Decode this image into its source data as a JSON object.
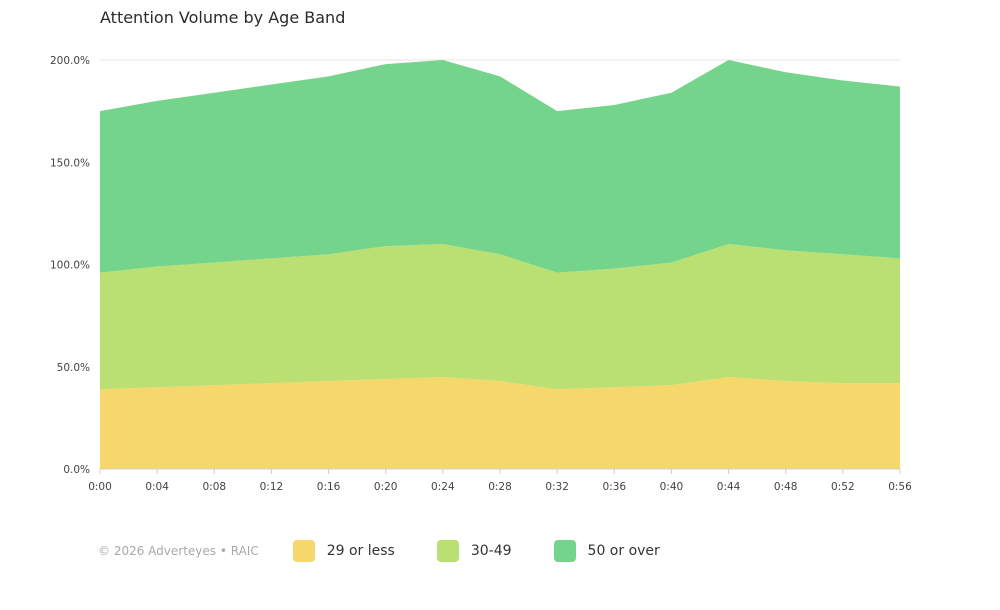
{
  "colors": {
    "band_29_or_less": "#f5d76c",
    "band_30_49": "#badf72",
    "band_50_or_over": "#74d48b",
    "gridline": "#e6e6e6",
    "axis": "#cfcfcf"
  },
  "footer": {
    "copyright": "© 2026 Adverteyes • RAIC"
  },
  "chart_data": {
    "type": "area",
    "stacked": true,
    "title": "Attention Volume by Age Band",
    "xlabel": "",
    "ylabel": "",
    "x": [
      "0:00",
      "0:04",
      "0:08",
      "0:12",
      "0:16",
      "0:20",
      "0:24",
      "0:28",
      "0:32",
      "0:36",
      "0:40",
      "0:44",
      "0:48",
      "0:52",
      "0:56"
    ],
    "yticks": [
      "0.0%",
      "50.0%",
      "100.0%",
      "150.0%",
      "200.0%"
    ],
    "ylim": [
      0,
      200
    ],
    "grid": true,
    "legend_position": "bottom",
    "series": [
      {
        "name": "29 or less",
        "values": [
          39,
          40,
          41,
          42,
          43,
          44,
          45,
          43,
          39,
          40,
          41,
          45,
          43,
          42,
          42
        ]
      },
      {
        "name": "30-49",
        "values": [
          57,
          59,
          60,
          61,
          62,
          65,
          65,
          62,
          57,
          58,
          60,
          65,
          64,
          63,
          61
        ]
      },
      {
        "name": "50 or over",
        "values": [
          79,
          81,
          83,
          85,
          87,
          89,
          90,
          87,
          79,
          80,
          83,
          90,
          87,
          85,
          84
        ]
      }
    ]
  }
}
